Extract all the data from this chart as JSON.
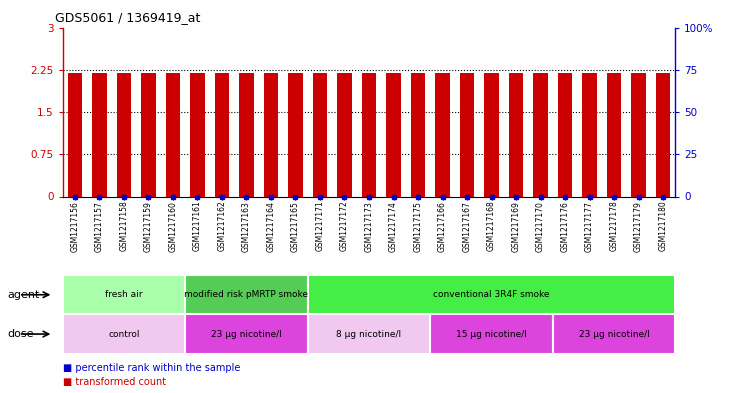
{
  "title": "GDS5061 / 1369419_at",
  "samples": [
    "GSM1217156",
    "GSM1217157",
    "GSM1217158",
    "GSM1217159",
    "GSM1217160",
    "GSM1217161",
    "GSM1217162",
    "GSM1217163",
    "GSM1217164",
    "GSM1217165",
    "GSM1217171",
    "GSM1217172",
    "GSM1217173",
    "GSM1217174",
    "GSM1217175",
    "GSM1217166",
    "GSM1217167",
    "GSM1217168",
    "GSM1217169",
    "GSM1217170",
    "GSM1217176",
    "GSM1217177",
    "GSM1217178",
    "GSM1217179",
    "GSM1217180"
  ],
  "bar_values": [
    2.2,
    2.2,
    2.2,
    2.2,
    2.2,
    2.2,
    2.2,
    2.2,
    2.2,
    2.2,
    2.2,
    2.2,
    2.2,
    2.2,
    2.2,
    2.2,
    2.2,
    2.2,
    2.2,
    2.2,
    2.2,
    2.2,
    2.2,
    2.2,
    2.2
  ],
  "bar_color": "#cc0000",
  "dot_color": "#0000cc",
  "ylim_left": [
    0,
    3
  ],
  "ylim_right": [
    0,
    100
  ],
  "yticks_left": [
    0,
    0.75,
    1.5,
    2.25,
    3
  ],
  "yticks_right": [
    0,
    25,
    50,
    75,
    100
  ],
  "ytick_labels_left": [
    "0",
    "0.75",
    "1.5",
    "2.25",
    "3"
  ],
  "ytick_labels_right": [
    "0",
    "25",
    "50",
    "75",
    "100%"
  ],
  "hlines": [
    0.75,
    1.5,
    2.25
  ],
  "agent_groups": [
    {
      "label": "fresh air",
      "start": 0,
      "end": 5,
      "color": "#aaffaa"
    },
    {
      "label": "modified risk pMRTP smoke",
      "start": 5,
      "end": 10,
      "color": "#55cc55"
    },
    {
      "label": "conventional 3R4F smoke",
      "start": 10,
      "end": 25,
      "color": "#44ee44"
    }
  ],
  "dose_groups": [
    {
      "label": "control",
      "start": 0,
      "end": 5,
      "color": "#f0c8f0"
    },
    {
      "label": "23 μg nicotine/l",
      "start": 5,
      "end": 10,
      "color": "#dd44dd"
    },
    {
      "label": "8 μg nicotine/l",
      "start": 10,
      "end": 15,
      "color": "#f0c8f0"
    },
    {
      "label": "15 μg nicotine/l",
      "start": 15,
      "end": 20,
      "color": "#dd44dd"
    },
    {
      "label": "23 μg nicotine/l",
      "start": 20,
      "end": 25,
      "color": "#dd44dd"
    }
  ],
  "legend_items": [
    {
      "label": "transformed count",
      "color": "#cc0000"
    },
    {
      "label": "percentile rank within the sample",
      "color": "#0000cc"
    }
  ]
}
